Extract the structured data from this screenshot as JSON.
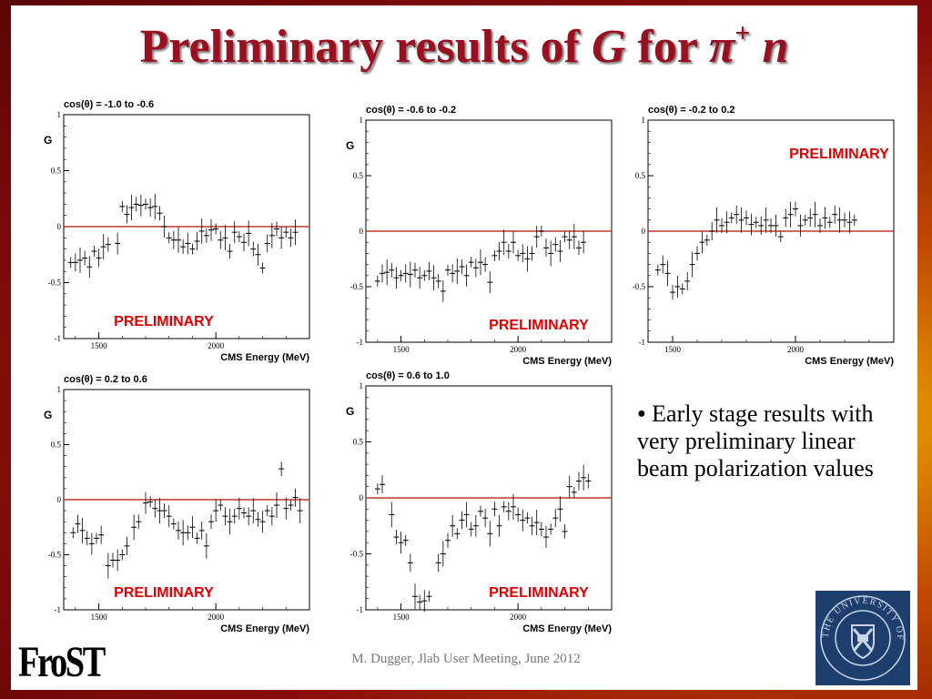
{
  "slide": {
    "title_text": "Preliminary results of ",
    "title_var": "G",
    "title_mid": " for ",
    "title_pi": "π",
    "title_sup": "+",
    "title_space": " ",
    "title_n": "n",
    "bullet": "Early stage results with very preliminary linear beam polarization values",
    "footer": "M. Dugger, Jlab User Meeting, June 2012",
    "logo_text": "FroST",
    "seal_text": "THE UNIVERSITY OF EDINBURGH"
  },
  "colors": {
    "title": "#9b1020",
    "zero_line": "#c0392b",
    "watermark": "#e00000",
    "seal": "#1e3f6e"
  },
  "chart_data": [
    {
      "type": "scatter",
      "title": "cos(θ) = -1.0 to -0.6",
      "xlabel": "CMS Energy (MeV)",
      "ylabel": "G",
      "xlim": [
        1350,
        2400
      ],
      "ylim": [
        -1,
        1
      ],
      "xticks": [
        1500,
        2000
      ],
      "yticks": [
        -1,
        -0.5,
        0,
        0.5,
        1
      ],
      "watermark": "PRELIMINARY",
      "watermark_pos": "bottom-left",
      "x": [
        1380,
        1400,
        1420,
        1440,
        1460,
        1480,
        1500,
        1520,
        1540,
        1580,
        1600,
        1620,
        1640,
        1660,
        1680,
        1700,
        1720,
        1740,
        1760,
        1780,
        1800,
        1820,
        1840,
        1860,
        1880,
        1900,
        1920,
        1940,
        1960,
        1980,
        2000,
        2020,
        2040,
        2060,
        2080,
        2100,
        2120,
        2140,
        2160,
        2180,
        2200,
        2220,
        2240,
        2260,
        2280,
        2300,
        2320,
        2340
      ],
      "y": [
        -0.32,
        -0.32,
        -0.3,
        -0.28,
        -0.36,
        -0.22,
        -0.28,
        -0.18,
        -0.16,
        -0.15,
        0.18,
        0.11,
        0.17,
        0.2,
        0.19,
        0.2,
        0.17,
        0.18,
        0.12,
        0.0,
        -0.1,
        -0.12,
        -0.12,
        -0.18,
        -0.15,
        -0.2,
        -0.13,
        -0.04,
        -0.08,
        -0.03,
        -0.02,
        -0.12,
        -0.1,
        -0.22,
        -0.05,
        -0.09,
        -0.14,
        -0.06,
        -0.2,
        -0.25,
        -0.37,
        -0.15,
        -0.08,
        -0.02,
        -0.1,
        -0.05,
        -0.1,
        -0.05
      ]
    },
    {
      "type": "scatter",
      "title": "cos(θ) = -0.6 to -0.2",
      "xlabel": "CMS Energy (MeV)",
      "ylabel": "G",
      "xlim": [
        1350,
        2400
      ],
      "ylim": [
        -1,
        1
      ],
      "xticks": [
        1500,
        2000
      ],
      "yticks": [
        -1,
        -0.5,
        0,
        0.5,
        1
      ],
      "watermark": "PRELIMINARY",
      "watermark_pos": "bottom-right",
      "x": [
        1400,
        1420,
        1440,
        1460,
        1480,
        1500,
        1520,
        1540,
        1560,
        1580,
        1600,
        1620,
        1640,
        1660,
        1680,
        1700,
        1720,
        1740,
        1760,
        1780,
        1800,
        1820,
        1840,
        1860,
        1880,
        1900,
        1920,
        1940,
        1960,
        1980,
        2000,
        2020,
        2040,
        2060,
        2080,
        2100,
        2120,
        2140,
        2160,
        2180,
        2200,
        2220,
        2240,
        2260,
        2280
      ],
      "y": [
        -0.45,
        -0.38,
        -0.37,
        -0.35,
        -0.42,
        -0.4,
        -0.38,
        -0.39,
        -0.35,
        -0.42,
        -0.4,
        -0.36,
        -0.42,
        -0.45,
        -0.54,
        -0.35,
        -0.38,
        -0.36,
        -0.32,
        -0.4,
        -0.28,
        -0.33,
        -0.28,
        -0.3,
        -0.46,
        -0.22,
        -0.18,
        -0.1,
        -0.18,
        -0.1,
        -0.22,
        -0.2,
        -0.25,
        -0.2,
        -0.05,
        0.0,
        -0.15,
        -0.2,
        -0.12,
        -0.18,
        -0.05,
        -0.08,
        -0.05,
        -0.15,
        -0.1
      ]
    },
    {
      "type": "scatter",
      "title": "cos(θ) = -0.2 to 0.2",
      "xlabel": "CMS Energy (MeV)",
      "ylabel": "",
      "xlim": [
        1400,
        2400
      ],
      "ylim": [
        -1,
        1
      ],
      "xticks": [
        1500,
        2000
      ],
      "yticks": [
        -1,
        -0.5,
        0,
        0.5,
        1
      ],
      "watermark": "PRELIMINARY",
      "watermark_pos": "top-right",
      "x": [
        1440,
        1460,
        1480,
        1500,
        1520,
        1540,
        1560,
        1580,
        1600,
        1620,
        1640,
        1660,
        1680,
        1700,
        1720,
        1740,
        1760,
        1780,
        1800,
        1820,
        1840,
        1860,
        1880,
        1900,
        1920,
        1940,
        1960,
        1980,
        2000,
        2020,
        2040,
        2060,
        2080,
        2100,
        2120,
        2140,
        2160,
        2180,
        2200,
        2220,
        2240
      ],
      "y": [
        -0.35,
        -0.3,
        -0.38,
        -0.55,
        -0.5,
        -0.52,
        -0.45,
        -0.3,
        -0.2,
        -0.1,
        -0.08,
        0.0,
        0.1,
        0.05,
        0.08,
        0.12,
        0.15,
        0.1,
        0.12,
        0.06,
        0.08,
        0.05,
        0.1,
        0.05,
        0.05,
        -0.05,
        0.12,
        0.15,
        0.2,
        0.05,
        0.1,
        0.12,
        0.15,
        0.05,
        0.12,
        0.08,
        0.15,
        0.1,
        0.1,
        0.08,
        0.1
      ]
    },
    {
      "type": "scatter",
      "title": "cos(θ) = 0.2 to 0.6",
      "xlabel": "CMS Energy (MeV)",
      "ylabel": "G",
      "xlim": [
        1350,
        2400
      ],
      "ylim": [
        -1,
        1
      ],
      "xticks": [
        1500,
        2000
      ],
      "yticks": [
        -1,
        -0.5,
        0,
        0.5,
        1
      ],
      "watermark": "PRELIMINARY",
      "watermark_pos": "bottom-left",
      "x": [
        1390,
        1410,
        1430,
        1450,
        1470,
        1490,
        1510,
        1540,
        1560,
        1580,
        1600,
        1620,
        1650,
        1670,
        1700,
        1720,
        1740,
        1760,
        1780,
        1800,
        1820,
        1840,
        1860,
        1880,
        1900,
        1920,
        1940,
        1960,
        1980,
        2000,
        2020,
        2040,
        2060,
        2080,
        2100,
        2120,
        2140,
        2160,
        2180,
        2200,
        2220,
        2240,
        2260,
        2280,
        2300,
        2320,
        2340,
        2360
      ],
      "y": [
        -0.3,
        -0.22,
        -0.28,
        -0.35,
        -0.4,
        -0.35,
        -0.32,
        -0.6,
        -0.55,
        -0.55,
        -0.5,
        -0.42,
        -0.25,
        -0.2,
        -0.03,
        -0.02,
        -0.08,
        -0.1,
        -0.1,
        -0.15,
        -0.22,
        -0.28,
        -0.3,
        -0.3,
        -0.25,
        -0.35,
        -0.28,
        -0.42,
        -0.2,
        -0.1,
        -0.05,
        -0.15,
        -0.2,
        -0.15,
        -0.08,
        -0.12,
        -0.15,
        -0.1,
        -0.18,
        -0.2,
        -0.1,
        -0.15,
        -0.05,
        0.28,
        -0.08,
        -0.05,
        0.02,
        -0.1
      ]
    },
    {
      "type": "scatter",
      "title": "cos(θ) = 0.6 to 1.0",
      "xlabel": "CMS Energy (MeV)",
      "ylabel": "G",
      "xlim": [
        1350,
        2400
      ],
      "ylim": [
        -1,
        1
      ],
      "xticks": [
        1500,
        2000
      ],
      "yticks": [
        -1,
        -0.5,
        0,
        0.5,
        1
      ],
      "watermark": "PRELIMINARY",
      "watermark_pos": "bottom-right",
      "x": [
        1400,
        1420,
        1460,
        1480,
        1500,
        1520,
        1540,
        1560,
        1580,
        1600,
        1620,
        1660,
        1680,
        1700,
        1720,
        1740,
        1760,
        1780,
        1800,
        1820,
        1840,
        1860,
        1880,
        1900,
        1920,
        1940,
        1960,
        1980,
        2000,
        2020,
        2040,
        2060,
        2080,
        2100,
        2120,
        2140,
        2160,
        2180,
        2200,
        2220,
        2240,
        2260,
        2280,
        2300
      ],
      "y": [
        0.08,
        0.12,
        -0.15,
        -0.35,
        -0.4,
        -0.38,
        -0.58,
        -0.88,
        -0.93,
        -0.92,
        -0.88,
        -0.58,
        -0.5,
        -0.38,
        -0.25,
        -0.32,
        -0.2,
        -0.15,
        -0.28,
        -0.25,
        -0.12,
        -0.18,
        -0.32,
        -0.1,
        -0.25,
        -0.08,
        -0.12,
        -0.08,
        -0.15,
        -0.2,
        -0.18,
        -0.25,
        -0.22,
        -0.28,
        -0.35,
        -0.28,
        -0.18,
        -0.1,
        -0.3,
        0.1,
        0.05,
        0.15,
        0.18,
        0.15
      ]
    }
  ]
}
